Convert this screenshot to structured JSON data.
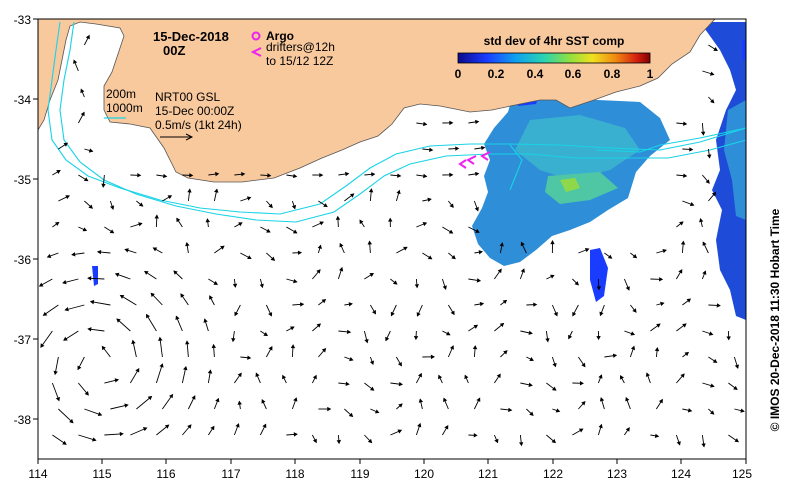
{
  "map": {
    "x_ticks": [
      "114",
      "115",
      "116",
      "117",
      "118",
      "119",
      "120",
      "121",
      "122",
      "123",
      "124",
      "125"
    ],
    "y_ticks": [
      "-33",
      "-34",
      "-35",
      "-36",
      "-37",
      "-38"
    ],
    "x_range": [
      114,
      125
    ],
    "y_range": [
      -38.5,
      -33
    ],
    "colors": {
      "land": "#f9c99e",
      "contour": "#19d3e6",
      "argo": "#ee22ee",
      "drifter": "#ee22ee",
      "vector": "#000000"
    }
  },
  "header": {
    "date": "15-Dec-2018",
    "time": "00Z"
  },
  "legend": {
    "argo_label": "Argo",
    "drifters_line1": "drifters@12h",
    "drifters_line2": "to 15/12 12Z"
  },
  "contours": {
    "label_200": "200m",
    "label_1000": "1000m"
  },
  "source": {
    "line1": "NRT00 GSL",
    "line2": "15-Dec 00:00Z",
    "line3": "0.5m/s (1kt 24h)"
  },
  "colorbar": {
    "title": "std dev of 4hr SST comp",
    "ticks": [
      "0",
      "0.2",
      "0.4",
      "0.6",
      "0.8",
      "1"
    ],
    "range": [
      0,
      1
    ]
  },
  "credit": "© IMOS 20-Dec-2018 11:30 Hobart Time"
}
